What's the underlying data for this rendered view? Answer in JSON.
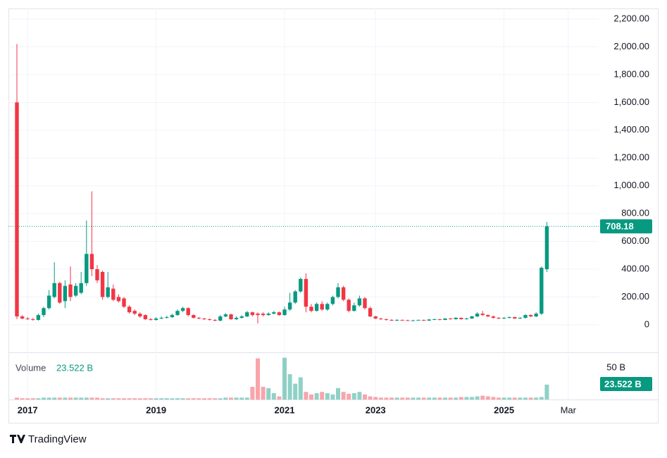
{
  "chart_data": {
    "type": "candlestick",
    "categories": [
      null,
      null,
      "2017",
      null,
      null,
      null,
      null,
      null,
      null,
      null,
      null,
      null,
      null,
      null,
      null,
      null,
      null,
      null,
      null,
      null,
      null,
      null,
      null,
      null,
      null,
      null,
      "2019",
      null,
      null,
      null,
      null,
      null,
      null,
      null,
      null,
      null,
      null,
      null,
      null,
      null,
      null,
      null,
      null,
      null,
      null,
      null,
      null,
      null,
      null,
      null,
      "2021",
      null,
      null,
      null,
      null,
      null,
      null,
      null,
      null,
      null,
      null,
      null,
      null,
      null,
      null,
      null,
      null,
      "2023",
      null,
      null,
      null,
      null,
      null,
      null,
      null,
      null,
      null,
      null,
      null,
      null,
      null,
      null,
      null,
      null,
      null,
      null,
      null,
      null,
      null,
      null,
      null,
      "2025",
      null,
      null,
      null,
      null,
      null,
      null,
      null,
      null,
      null,
      null,
      null,
      "Mar"
    ],
    "open": [
      1600,
      60,
      45,
      40,
      35,
      70,
      120,
      200,
      300,
      170,
      290,
      210,
      230,
      300,
      510,
      400,
      380,
      200,
      260,
      200,
      190,
      130,
      100,
      80,
      70,
      40,
      35,
      45,
      50,
      55,
      70,
      100,
      120,
      70,
      50,
      45,
      40,
      35,
      30,
      60,
      75,
      40,
      50,
      60,
      90,
      80,
      80,
      70,
      80,
      90,
      70,
      110,
      160,
      240,
      330,
      130,
      100,
      150,
      110,
      150,
      200,
      270,
      180,
      100,
      140,
      190,
      120,
      60,
      45,
      40,
      35,
      30,
      35,
      33,
      30,
      32,
      35,
      30,
      38,
      40,
      35,
      45,
      40,
      50,
      40,
      45,
      60,
      80,
      70,
      60,
      50,
      45,
      50,
      55,
      45,
      50,
      70,
      60,
      80,
      400,
      null,
      null,
      null,
      null
    ],
    "high": [
      2020,
      70,
      55,
      50,
      80,
      130,
      250,
      450,
      310,
      320,
      420,
      300,
      380,
      750,
      960,
      430,
      390,
      380,
      290,
      220,
      200,
      140,
      110,
      90,
      75,
      50,
      55,
      60,
      65,
      80,
      110,
      130,
      125,
      75,
      55,
      50,
      45,
      40,
      70,
      85,
      80,
      60,
      70,
      100,
      95,
      90,
      90,
      90,
      100,
      95,
      130,
      230,
      250,
      340,
      370,
      150,
      160,
      170,
      160,
      210,
      300,
      280,
      190,
      160,
      210,
      200,
      130,
      65,
      50,
      45,
      40,
      40,
      38,
      36,
      36,
      38,
      37,
      42,
      44,
      42,
      48,
      48,
      55,
      52,
      50,
      65,
      90,
      100,
      75,
      65,
      55,
      55,
      60,
      58,
      55,
      75,
      75,
      90,
      420,
      740,
      null,
      null,
      null,
      null
    ],
    "low": [
      40,
      40,
      35,
      30,
      30,
      55,
      110,
      190,
      150,
      120,
      170,
      200,
      220,
      280,
      350,
      300,
      180,
      190,
      170,
      160,
      120,
      80,
      70,
      50,
      35,
      30,
      30,
      40,
      45,
      50,
      65,
      90,
      60,
      45,
      40,
      35,
      30,
      25,
      25,
      55,
      35,
      35,
      45,
      55,
      60,
      10,
      60,
      65,
      75,
      65,
      65,
      100,
      150,
      230,
      90,
      90,
      95,
      100,
      100,
      140,
      190,
      170,
      90,
      95,
      130,
      110,
      55,
      40,
      35,
      30,
      28,
      28,
      30,
      28,
      28,
      30,
      28,
      28,
      35,
      32,
      33,
      37,
      38,
      37,
      38,
      42,
      55,
      65,
      55,
      45,
      40,
      42,
      45,
      42,
      42,
      45,
      55,
      55,
      70,
      380,
      null,
      null,
      null,
      null
    ],
    "close": [
      60,
      45,
      40,
      35,
      70,
      120,
      210,
      300,
      160,
      280,
      200,
      280,
      300,
      510,
      400,
      320,
      200,
      270,
      180,
      170,
      130,
      90,
      80,
      60,
      40,
      35,
      45,
      50,
      55,
      70,
      100,
      120,
      70,
      50,
      45,
      40,
      35,
      30,
      60,
      75,
      40,
      50,
      60,
      90,
      70,
      70,
      70,
      80,
      90,
      70,
      110,
      160,
      240,
      330,
      130,
      100,
      150,
      110,
      150,
      200,
      270,
      180,
      100,
      140,
      190,
      120,
      60,
      45,
      40,
      35,
      30,
      35,
      33,
      30,
      32,
      35,
      30,
      38,
      40,
      35,
      45,
      40,
      50,
      40,
      45,
      60,
      80,
      70,
      60,
      50,
      45,
      50,
      55,
      45,
      50,
      70,
      60,
      80,
      410,
      708.18,
      null,
      null,
      null,
      null
    ],
    "up_color": "#089981",
    "down_color": "#f23645",
    "ylim": [
      -198,
      2276
    ],
    "yticks": [
      0,
      {
        "value": 200,
        "label": "200.00"
      },
      {
        "value": 400,
        "label": "400.00"
      },
      {
        "value": 600,
        "label": "600.00"
      },
      {
        "value": 800,
        "label": "800.00"
      },
      {
        "value": 1000,
        "label": "1,000.00"
      },
      {
        "value": 1200,
        "label": "1,200.00"
      },
      {
        "value": 1400,
        "label": "1,400.00"
      },
      {
        "value": 1600,
        "label": "1,600.00"
      },
      {
        "value": 1800,
        "label": "1,800.00"
      },
      {
        "value": 2000,
        "label": "2,000.00"
      },
      {
        "value": 2200,
        "label": "2,200.00"
      }
    ],
    "grid": true,
    "volume": {
      "name": "Volume",
      "values": [
        3,
        2,
        2,
        2,
        2,
        3,
        3,
        3,
        3,
        3,
        3,
        3,
        3,
        3,
        3,
        3,
        2,
        2,
        2,
        2,
        2,
        2,
        2,
        2,
        2,
        2,
        2,
        2,
        2,
        2,
        2,
        2,
        2,
        2,
        2,
        2,
        2,
        2,
        2,
        3,
        3,
        3,
        3,
        3,
        20,
        65,
        20,
        18,
        10,
        5,
        66,
        40,
        25,
        35,
        12,
        8,
        10,
        12,
        10,
        8,
        18,
        12,
        9,
        10,
        12,
        8,
        5,
        4,
        3,
        3,
        3,
        3,
        3,
        3,
        3,
        3,
        3,
        3,
        3,
        3,
        3,
        3,
        3,
        4,
        4,
        4,
        5,
        6,
        5,
        4,
        3,
        3,
        3,
        3,
        3,
        3,
        3,
        3,
        4,
        23.522,
        null,
        null,
        null,
        null
      ],
      "last_label": "23.522 B",
      "ylim": [
        0,
        69
      ],
      "yticks": [
        {
          "value": 50,
          "label": "50 B"
        }
      ]
    }
  },
  "footer": {
    "brand": "TradingView"
  }
}
